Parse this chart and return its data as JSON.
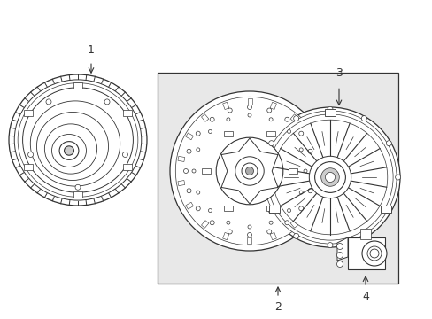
{
  "bg_color": "#ffffff",
  "box_bg": "#e8e8e8",
  "line_color": "#333333",
  "label_1": "1",
  "label_2": "2",
  "label_3": "3",
  "label_4": "4",
  "figw": 4.89,
  "figh": 3.6,
  "dpi": 100
}
